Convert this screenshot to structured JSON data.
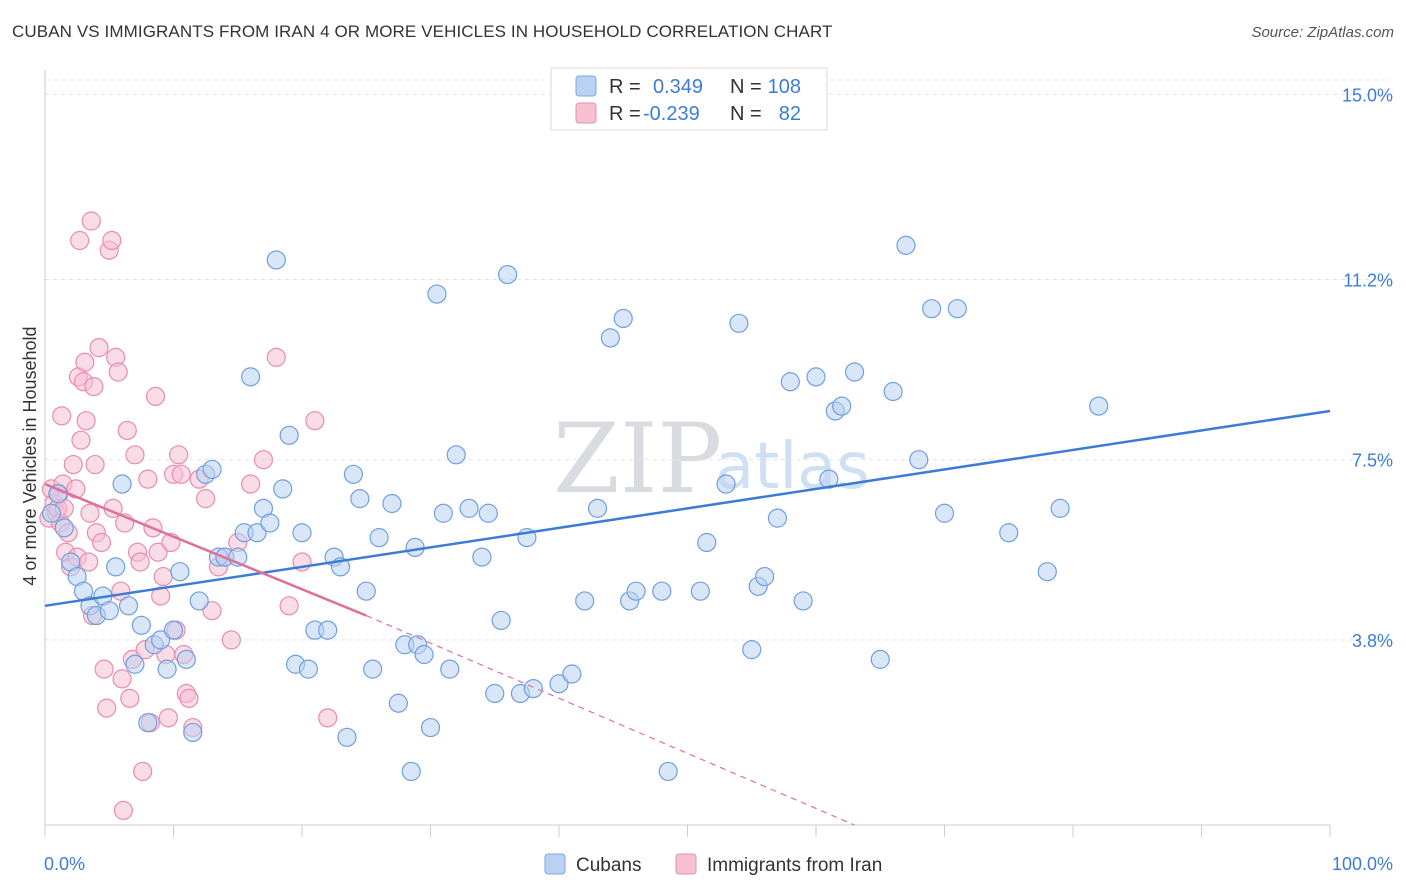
{
  "title": "CUBAN VS IMMIGRANTS FROM IRAN 4 OR MORE VEHICLES IN HOUSEHOLD CORRELATION CHART",
  "source": "Source: ZipAtlas.com",
  "watermark": {
    "zip": "ZIP",
    "atlas": "atlas"
  },
  "legend": {
    "r_label": "R =",
    "n_label": "N =",
    "rows": [
      {
        "r": "0.349",
        "n": "108"
      },
      {
        "r": "-0.239",
        "n": "82"
      }
    ]
  },
  "bottom_legend": [
    "Cubans",
    "Immigrants from Iran"
  ],
  "colors": {
    "blue": "#3d7cd6",
    "blue_fill": "#b9d2f2",
    "pink": "#e0709a",
    "pink_fill": "#f6bfd2"
  },
  "chart_data": {
    "type": "scatter",
    "ylabel": "4 or more Vehicles in Household",
    "xlim": [
      0,
      100
    ],
    "ylim": [
      0,
      15.5
    ],
    "x_tick_labels": [
      "0.0%",
      "100.0%"
    ],
    "y_ticks": [
      3.8,
      7.5,
      11.2,
      15.0
    ],
    "y_tick_labels": [
      "3.8%",
      "7.5%",
      "11.2%",
      "15.0%"
    ],
    "grid": true,
    "series": [
      {
        "name": "Cubans",
        "trend": {
          "x": [
            0,
            100
          ],
          "y": [
            4.5,
            8.5
          ],
          "dashed_x": null
        },
        "points": [
          [
            0.5,
            6.4
          ],
          [
            1,
            6.8
          ],
          [
            1.5,
            6.1
          ],
          [
            2,
            5.4
          ],
          [
            2.5,
            5.1
          ],
          [
            3,
            4.8
          ],
          [
            3.5,
            4.5
          ],
          [
            4,
            4.3
          ],
          [
            4.5,
            4.7
          ],
          [
            5,
            4.4
          ],
          [
            5.5,
            5.3
          ],
          [
            6,
            7.0
          ],
          [
            6.5,
            4.5
          ],
          [
            7,
            3.3
          ],
          [
            7.5,
            4.1
          ],
          [
            8,
            2.1
          ],
          [
            8.5,
            3.7
          ],
          [
            9,
            3.8
          ],
          [
            9.5,
            3.2
          ],
          [
            10,
            4.0
          ],
          [
            10.5,
            5.2
          ],
          [
            11,
            3.4
          ],
          [
            11.5,
            1.9
          ],
          [
            12,
            4.6
          ],
          [
            12.5,
            7.2
          ],
          [
            13,
            7.3
          ],
          [
            13.5,
            5.5
          ],
          [
            14,
            5.5
          ],
          [
            15,
            5.5
          ],
          [
            15.5,
            6.0
          ],
          [
            16,
            9.2
          ],
          [
            16.5,
            6.0
          ],
          [
            17,
            6.5
          ],
          [
            17.5,
            6.2
          ],
          [
            18,
            11.6
          ],
          [
            18.5,
            6.9
          ],
          [
            19,
            8.0
          ],
          [
            19.5,
            3.3
          ],
          [
            20,
            6.0
          ],
          [
            20.5,
            3.2
          ],
          [
            21,
            4.0
          ],
          [
            22,
            4.0
          ],
          [
            22.5,
            5.5
          ],
          [
            23,
            5.3
          ],
          [
            23.5,
            1.8
          ],
          [
            24,
            7.2
          ],
          [
            24.5,
            6.7
          ],
          [
            25,
            4.8
          ],
          [
            25.5,
            3.2
          ],
          [
            26,
            5.9
          ],
          [
            27,
            6.6
          ],
          [
            27.5,
            2.5
          ],
          [
            28,
            3.7
          ],
          [
            28.5,
            1.1
          ],
          [
            28.8,
            5.7
          ],
          [
            29,
            3.7
          ],
          [
            29.5,
            3.5
          ],
          [
            30,
            2.0
          ],
          [
            30.5,
            10.9
          ],
          [
            31,
            6.4
          ],
          [
            31.5,
            3.2
          ],
          [
            32,
            7.6
          ],
          [
            33,
            6.5
          ],
          [
            34,
            5.5
          ],
          [
            34.5,
            6.4
          ],
          [
            35,
            2.7
          ],
          [
            36,
            11.3
          ],
          [
            37,
            2.7
          ],
          [
            37.5,
            5.9
          ],
          [
            38,
            2.8
          ],
          [
            40,
            2.9
          ],
          [
            41,
            3.1
          ],
          [
            42,
            4.6
          ],
          [
            43,
            6.5
          ],
          [
            44,
            10.0
          ],
          [
            45,
            10.4
          ],
          [
            45.5,
            4.6
          ],
          [
            46,
            4.8
          ],
          [
            46.5,
            14.7
          ],
          [
            48,
            4.8
          ],
          [
            51,
            4.8
          ],
          [
            51.5,
            5.8
          ],
          [
            53,
            7.0
          ],
          [
            54,
            10.3
          ],
          [
            55,
            3.6
          ],
          [
            55.5,
            4.9
          ],
          [
            56,
            5.1
          ],
          [
            57,
            6.3
          ],
          [
            58,
            9.1
          ],
          [
            59,
            4.6
          ],
          [
            60,
            9.2
          ],
          [
            61,
            7.1
          ],
          [
            61.5,
            8.5
          ],
          [
            62,
            8.6
          ],
          [
            63,
            9.3
          ],
          [
            65,
            3.4
          ],
          [
            66,
            8.9
          ],
          [
            67,
            11.9
          ],
          [
            68,
            7.5
          ],
          [
            69,
            10.6
          ],
          [
            70,
            6.4
          ],
          [
            71,
            10.6
          ],
          [
            75,
            6.0
          ],
          [
            78,
            5.2
          ],
          [
            79,
            6.5
          ],
          [
            82,
            8.6
          ],
          [
            48.5,
            1.1
          ],
          [
            35.5,
            4.2
          ]
        ]
      },
      {
        "name": "Immigrants from Iran",
        "trend": {
          "x": [
            0,
            25
          ],
          "y": [
            7.0,
            4.3
          ],
          "dashed_x": [
            25,
            63
          ],
          "dashed_y": [
            4.3,
            0.0
          ]
        },
        "points": [
          [
            0.3,
            6.3
          ],
          [
            0.5,
            6.9
          ],
          [
            0.7,
            6.6
          ],
          [
            0.9,
            6.4
          ],
          [
            1,
            6.5
          ],
          [
            1.1,
            6.8
          ],
          [
            1.2,
            6.2
          ],
          [
            1.3,
            8.4
          ],
          [
            1.4,
            7.0
          ],
          [
            1.5,
            6.5
          ],
          [
            1.6,
            5.6
          ],
          [
            1.8,
            6.0
          ],
          [
            2,
            5.3
          ],
          [
            2.2,
            7.4
          ],
          [
            2.4,
            6.9
          ],
          [
            2.5,
            5.5
          ],
          [
            2.6,
            9.2
          ],
          [
            2.7,
            12.0
          ],
          [
            2.8,
            7.9
          ],
          [
            3,
            9.1
          ],
          [
            3.1,
            9.5
          ],
          [
            3.2,
            8.3
          ],
          [
            3.4,
            5.4
          ],
          [
            3.5,
            6.4
          ],
          [
            3.6,
            12.4
          ],
          [
            3.7,
            4.3
          ],
          [
            3.8,
            9.0
          ],
          [
            3.9,
            7.4
          ],
          [
            4,
            6.0
          ],
          [
            4.2,
            9.8
          ],
          [
            4.4,
            5.8
          ],
          [
            4.6,
            3.2
          ],
          [
            4.8,
            2.4
          ],
          [
            5,
            11.8
          ],
          [
            5.2,
            12.0
          ],
          [
            5.3,
            6.5
          ],
          [
            5.5,
            9.6
          ],
          [
            5.7,
            9.3
          ],
          [
            5.9,
            4.8
          ],
          [
            6,
            3.0
          ],
          [
            6.2,
            6.2
          ],
          [
            6.4,
            8.1
          ],
          [
            6.6,
            2.6
          ],
          [
            6.8,
            3.4
          ],
          [
            7,
            7.6
          ],
          [
            7.2,
            5.6
          ],
          [
            7.4,
            5.4
          ],
          [
            7.6,
            1.1
          ],
          [
            7.8,
            3.6
          ],
          [
            8,
            7.1
          ],
          [
            8.2,
            2.1
          ],
          [
            8.4,
            6.1
          ],
          [
            8.6,
            8.8
          ],
          [
            8.8,
            5.6
          ],
          [
            9,
            4.7
          ],
          [
            9.2,
            5.1
          ],
          [
            9.4,
            3.5
          ],
          [
            9.6,
            2.2
          ],
          [
            9.8,
            5.8
          ],
          [
            10,
            7.2
          ],
          [
            10.2,
            4.0
          ],
          [
            10.4,
            7.6
          ],
          [
            10.6,
            7.2
          ],
          [
            10.8,
            3.5
          ],
          [
            11,
            2.7
          ],
          [
            11.2,
            2.6
          ],
          [
            11.5,
            2.0
          ],
          [
            12,
            7.1
          ],
          [
            12.5,
            6.7
          ],
          [
            13,
            4.4
          ],
          [
            13.5,
            5.3
          ],
          [
            14,
            5.5
          ],
          [
            14.5,
            3.8
          ],
          [
            15,
            5.8
          ],
          [
            16,
            7.0
          ],
          [
            17,
            7.5
          ],
          [
            18,
            9.6
          ],
          [
            19,
            4.5
          ],
          [
            20,
            5.4
          ],
          [
            21,
            8.3
          ],
          [
            22,
            2.2
          ],
          [
            6.1,
            0.3
          ]
        ]
      }
    ]
  }
}
